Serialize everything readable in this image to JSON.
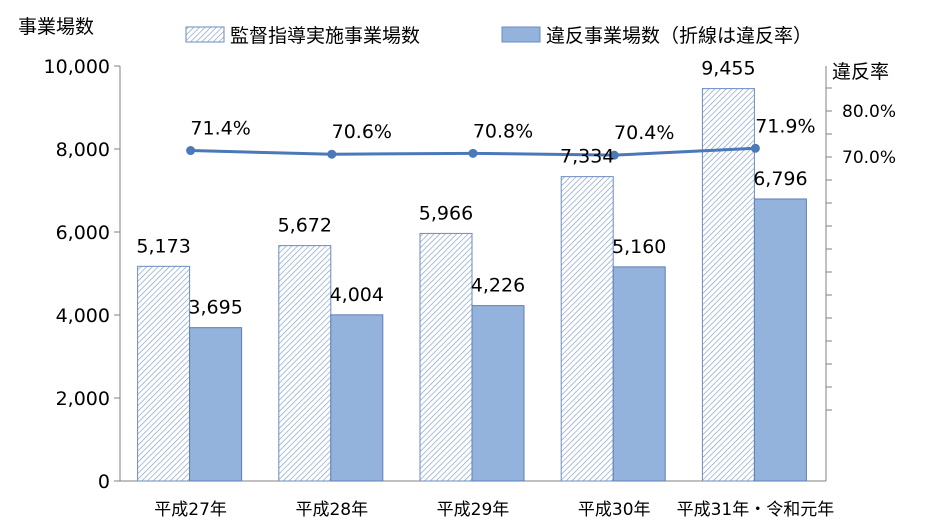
{
  "chart_data": {
    "type": "bar",
    "y_axis_title": "事業場数",
    "y2_axis_title": "違反率",
    "categories": [
      "平成27年",
      "平成28年",
      "平成29年",
      "平成30年",
      "平成31年・令和元年"
    ],
    "series": [
      {
        "name": "監督指導実施事業場数",
        "kind": "bar",
        "pattern": "diagonal-hatch",
        "color": "#8aa8d6",
        "values": [
          5173,
          5672,
          5966,
          7334,
          9455
        ],
        "value_labels": [
          "5,173",
          "5,672",
          "5,966",
          "7,334",
          "9,455"
        ]
      },
      {
        "name": "違反事業場数（折線は違反率）",
        "kind": "bar",
        "color": "#94b3dc",
        "values": [
          3695,
          4004,
          4226,
          5160,
          6796
        ],
        "value_labels": [
          "3,695",
          "4,004",
          "4,226",
          "5,160",
          "6,796"
        ]
      },
      {
        "name": "違反率",
        "kind": "line",
        "axis": "right",
        "color": "#4a78b8",
        "values": [
          71.4,
          70.6,
          70.8,
          70.4,
          71.9
        ],
        "value_labels": [
          "71.4%",
          "70.6%",
          "70.8%",
          "70.4%",
          "71.9%"
        ]
      }
    ],
    "ylim": [
      0,
      10000
    ],
    "y_ticks": [
      "0",
      "2,000",
      "4,000",
      "6,000",
      "8,000",
      "10,000"
    ],
    "y2_ticks": [
      "70.0%",
      "80.0%"
    ],
    "y2_tick_values": [
      70,
      80
    ],
    "legend_position": "top",
    "grid": false
  }
}
